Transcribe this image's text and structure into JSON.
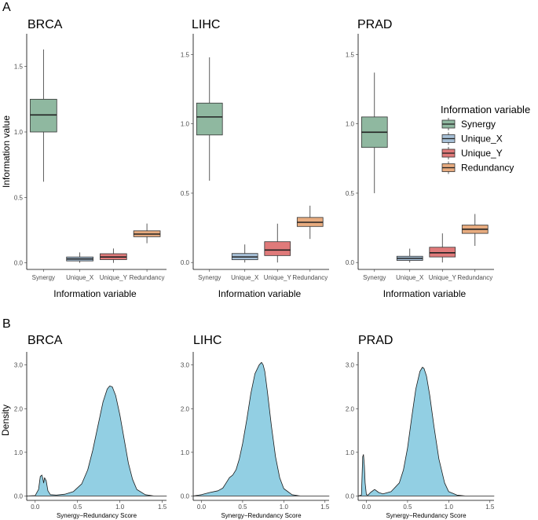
{
  "figure": {
    "panel_a_label": "A",
    "panel_b_label": "B"
  },
  "legend": {
    "title": "Information variable",
    "items": [
      {
        "label": "Synergy",
        "color": "#8fb8a0"
      },
      {
        "label": "Unique_X",
        "color": "#a6bfd6"
      },
      {
        "label": "Unique_Y",
        "color": "#e07a7a"
      },
      {
        "label": "Redundancy",
        "color": "#e7ab7f"
      }
    ]
  },
  "chart_data": [
    {
      "type": "box",
      "panel": "A",
      "facets": [
        {
          "title": "BRCA",
          "ylim": [
            -0.05,
            1.75
          ],
          "yticks": [
            "0.0",
            "0.5",
            "1.0",
            "1.5"
          ],
          "ytick_values": [
            0.0,
            0.5,
            1.0,
            1.5
          ],
          "boxes": [
            {
              "category": "Synergy",
              "min": 0.62,
              "q1": 1.0,
              "median": 1.13,
              "q3": 1.25,
              "max": 1.63
            },
            {
              "category": "Unique_X",
              "min": 0.0,
              "q1": 0.015,
              "median": 0.03,
              "q3": 0.045,
              "max": 0.08
            },
            {
              "category": "Unique_Y",
              "min": 0.0,
              "q1": 0.025,
              "median": 0.045,
              "q3": 0.07,
              "max": 0.11
            },
            {
              "category": "Redundancy",
              "min": 0.15,
              "q1": 0.2,
              "median": 0.22,
              "q3": 0.245,
              "max": 0.3
            }
          ]
        },
        {
          "title": "LIHC",
          "ylim": [
            -0.05,
            1.65
          ],
          "yticks": [
            "0.0",
            "0.5",
            "1.0",
            "1.5"
          ],
          "ytick_values": [
            0.0,
            0.5,
            1.0,
            1.5
          ],
          "boxes": [
            {
              "category": "Synergy",
              "min": 0.59,
              "q1": 0.92,
              "median": 1.05,
              "q3": 1.15,
              "max": 1.48
            },
            {
              "category": "Unique_X",
              "min": 0.0,
              "q1": 0.02,
              "median": 0.04,
              "q3": 0.065,
              "max": 0.13
            },
            {
              "category": "Unique_Y",
              "min": 0.0,
              "q1": 0.05,
              "median": 0.09,
              "q3": 0.15,
              "max": 0.28
            },
            {
              "category": "Redundancy",
              "min": 0.17,
              "q1": 0.26,
              "median": 0.29,
              "q3": 0.325,
              "max": 0.41
            }
          ]
        },
        {
          "title": "PRAD",
          "ylim": [
            -0.05,
            1.65
          ],
          "yticks": [
            "0.0",
            "0.5",
            "1.0",
            "1.5"
          ],
          "ytick_values": [
            0.0,
            0.5,
            1.0,
            1.5
          ],
          "boxes": [
            {
              "category": "Synergy",
              "min": 0.5,
              "q1": 0.83,
              "median": 0.94,
              "q3": 1.05,
              "max": 1.37
            },
            {
              "category": "Unique_X",
              "min": 0.0,
              "q1": 0.015,
              "median": 0.03,
              "q3": 0.045,
              "max": 0.1
            },
            {
              "category": "Unique_Y",
              "min": 0.0,
              "q1": 0.04,
              "median": 0.07,
              "q3": 0.11,
              "max": 0.21
            },
            {
              "category": "Redundancy",
              "min": 0.12,
              "q1": 0.21,
              "median": 0.24,
              "q3": 0.27,
              "max": 0.35
            }
          ]
        }
      ],
      "xlabel": "Information variable",
      "ylabel": "Information value",
      "categories": [
        "Synergy",
        "Unique_X",
        "Unique_Y",
        "Redundancy"
      ]
    },
    {
      "type": "area",
      "panel": "B",
      "xlim": [
        -0.1,
        1.55
      ],
      "xticks": [
        "0.0",
        "0.5",
        "1.0",
        "1.5"
      ],
      "xtick_values": [
        0.0,
        0.5,
        1.0,
        1.5
      ],
      "yticks": [
        "0.0",
        "1.0",
        "2.0",
        "3.0"
      ],
      "ytick_values": [
        0.0,
        1.0,
        2.0,
        3.0
      ],
      "xlabel": "Synergy−Redundancy Score",
      "ylabel": "Density",
      "fill_color": "#92cfe3",
      "facets": [
        {
          "title": "BRCA",
          "ylim": [
            -0.1,
            3.3
          ],
          "series": {
            "x": [
              -0.1,
              0.0,
              0.04,
              0.06,
              0.08,
              0.09,
              0.1,
              0.11,
              0.13,
              0.15,
              0.18,
              0.25,
              0.35,
              0.45,
              0.55,
              0.62,
              0.68,
              0.74,
              0.8,
              0.85,
              0.88,
              0.91,
              0.95,
              1.0,
              1.05,
              1.1,
              1.15,
              1.2,
              1.3,
              1.4,
              1.55
            ],
            "y": [
              0.0,
              0.01,
              0.15,
              0.45,
              0.48,
              0.4,
              0.3,
              0.42,
              0.35,
              0.12,
              0.03,
              0.02,
              0.04,
              0.1,
              0.28,
              0.6,
              1.05,
              1.6,
              2.15,
              2.45,
              2.52,
              2.5,
              2.3,
              1.85,
              1.3,
              0.75,
              0.38,
              0.15,
              0.03,
              0.0,
              0.0
            ]
          }
        },
        {
          "title": "LIHC",
          "ylim": [
            -0.1,
            3.3
          ],
          "series": {
            "x": [
              -0.1,
              0.0,
              0.1,
              0.2,
              0.26,
              0.3,
              0.34,
              0.38,
              0.42,
              0.46,
              0.5,
              0.55,
              0.6,
              0.65,
              0.7,
              0.73,
              0.75,
              0.77,
              0.8,
              0.85,
              0.9,
              0.95,
              1.0,
              1.1,
              1.2,
              1.35,
              1.55
            ],
            "y": [
              0.0,
              0.03,
              0.08,
              0.12,
              0.18,
              0.3,
              0.42,
              0.48,
              0.6,
              0.85,
              1.2,
              1.75,
              2.35,
              2.8,
              3.0,
              3.06,
              3.0,
              2.85,
              2.4,
              1.6,
              0.9,
              0.42,
              0.17,
              0.03,
              0.0,
              0.0,
              0.0
            ]
          }
        },
        {
          "title": "PRAD",
          "ylim": [
            -0.1,
            3.3
          ],
          "series": {
            "x": [
              -0.1,
              -0.06,
              -0.045,
              -0.035,
              -0.025,
              -0.015,
              0.0,
              0.02,
              0.05,
              0.1,
              0.15,
              0.2,
              0.3,
              0.4,
              0.45,
              0.5,
              0.55,
              0.6,
              0.65,
              0.68,
              0.7,
              0.73,
              0.77,
              0.82,
              0.88,
              0.95,
              1.0,
              1.1,
              1.2,
              1.35,
              1.55
            ],
            "y": [
              0.0,
              0.02,
              0.9,
              0.95,
              0.7,
              0.3,
              0.03,
              0.02,
              0.08,
              0.15,
              0.08,
              0.05,
              0.1,
              0.3,
              0.6,
              1.1,
              1.8,
              2.45,
              2.85,
              2.95,
              2.92,
              2.75,
              2.3,
              1.6,
              0.85,
              0.3,
              0.1,
              0.02,
              0.0,
              0.0,
              0.0
            ]
          }
        }
      ]
    }
  ]
}
